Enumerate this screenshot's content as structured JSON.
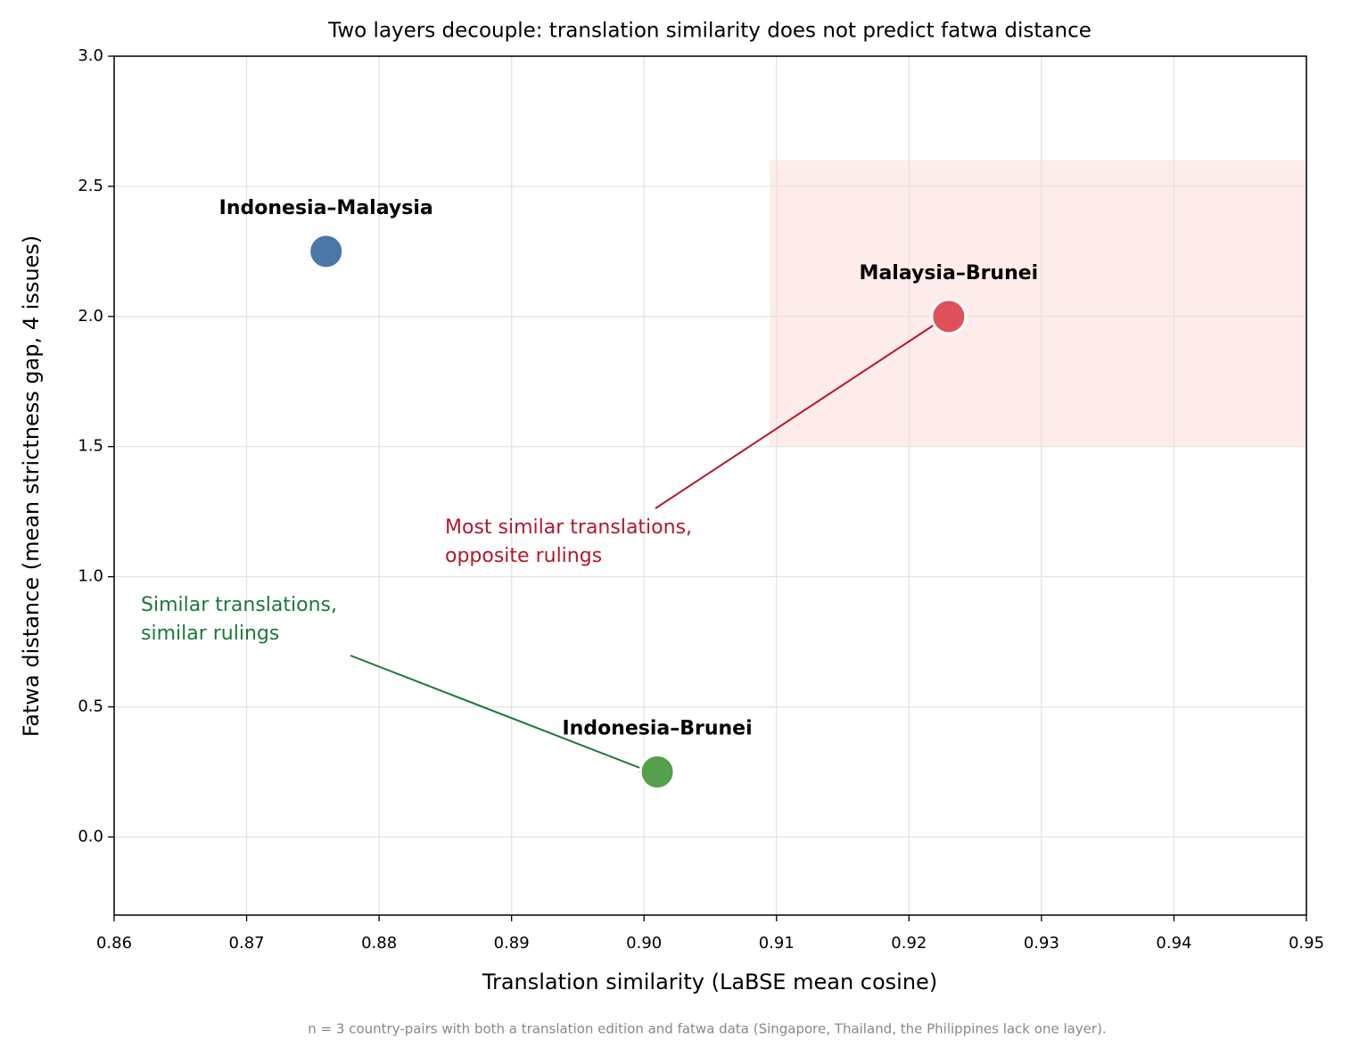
{
  "chart_data": {
    "type": "scatter",
    "title": "Two layers decouple: translation similarity does not predict fatwa distance",
    "x_label": "Translation similarity (LaBSE mean cosine)",
    "y_label": "Fatwa distance (mean strictness gap, 4 issues)",
    "footnote": "n = 3 country-pairs with both a translation edition and fatwa data (Singapore, Thailand, the Philippines lack one layer).",
    "xlim": [
      0.86,
      0.95
    ],
    "ylim": [
      -0.3,
      3.0
    ],
    "xticks": [
      0.86,
      0.87,
      0.88,
      0.89,
      {
        "value": 0.9,
        "label": "0.90"
      },
      0.91,
      0.92,
      0.93,
      0.94,
      0.95
    ],
    "yticks": [
      {
        "value": 0,
        "label": "0.0"
      },
      0.5,
      {
        "value": 1,
        "label": "1.0"
      },
      1.5,
      {
        "value": 2,
        "label": "2.0"
      },
      2.5,
      {
        "value": 3,
        "label": "3.0"
      }
    ],
    "grid": true,
    "highlight_region": {
      "xlim": [
        0.9095,
        0.95
      ],
      "ylim": [
        1.5,
        2.6
      ],
      "color": "#fdecea"
    },
    "series": [
      {
        "name": "Indonesia–Malaysia",
        "color": "#4a76a8",
        "x": [
          0.876
        ],
        "values": [
          2.25
        ]
      },
      {
        "name": "Malaysia–Brunei",
        "color": "#e0505a",
        "x": [
          0.923
        ],
        "values": [
          2.0
        ]
      },
      {
        "name": "Indonesia–Brunei",
        "color": "#55a04a",
        "x": [
          0.901
        ],
        "values": [
          0.25
        ]
      }
    ],
    "annotations": [
      {
        "lines": [
          "Most similar translations,",
          "opposite rulings"
        ],
        "color": "#b2182b"
      },
      {
        "lines": [
          "Similar translations,",
          "similar rulings"
        ],
        "color": "#1b7837"
      }
    ]
  }
}
